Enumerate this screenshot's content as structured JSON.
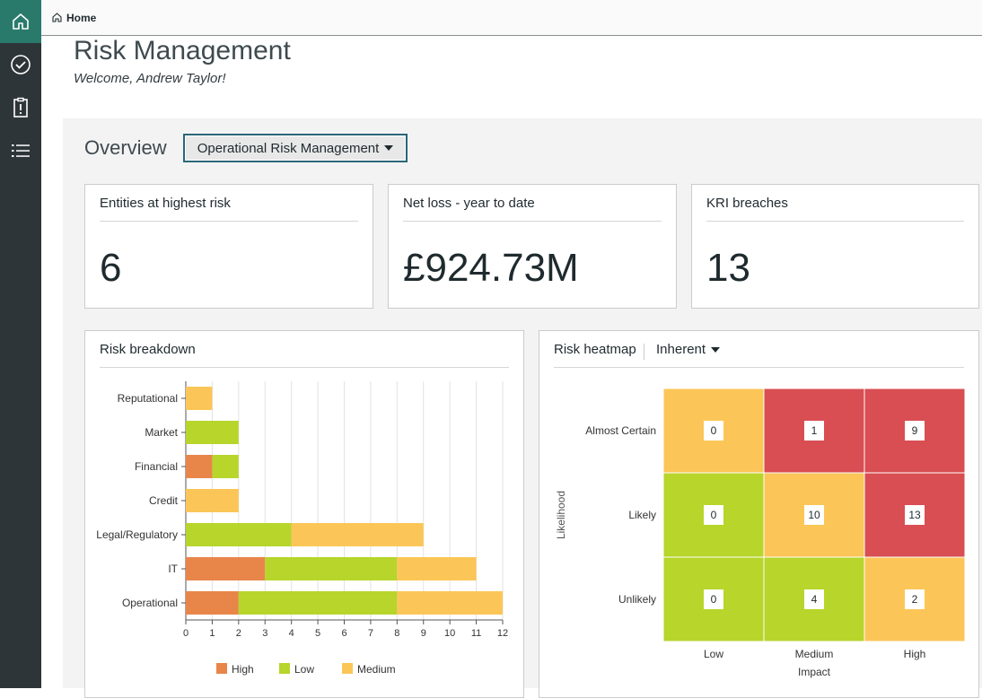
{
  "nav": {
    "items": [
      {
        "icon": "home-icon",
        "active": true
      },
      {
        "icon": "check-circle-icon",
        "active": false
      },
      {
        "icon": "clipboard-alert-icon",
        "active": false
      },
      {
        "icon": "list-icon",
        "active": false
      }
    ]
  },
  "breadcrumb": {
    "home_label": "Home"
  },
  "header": {
    "title": "Risk Management",
    "welcome": "Welcome, Andrew Taylor!"
  },
  "overview": {
    "label": "Overview",
    "selected": "Operational Risk Management"
  },
  "kpis": [
    {
      "title": "Entities at highest risk",
      "value": "6"
    },
    {
      "title": "Net loss - year to date",
      "value": "£924.73M"
    },
    {
      "title": "KRI breaches",
      "value": "13"
    }
  ],
  "breakdown": {
    "title": "Risk breakdown"
  },
  "heatmap": {
    "title": "Risk heatmap",
    "mode": "Inherent",
    "ylabel": "Likelihood",
    "xlabel": "Impact",
    "rows": [
      "Almost Certain",
      "Likely",
      "Unlikely"
    ],
    "cols": [
      "Low",
      "Medium",
      "High"
    ],
    "values": [
      [
        0,
        1,
        9
      ],
      [
        0,
        10,
        13
      ],
      [
        0,
        4,
        2
      ]
    ],
    "colors": [
      [
        "#fbc657",
        "#d84e53",
        "#d84e53"
      ],
      [
        "#b7d52b",
        "#fbc657",
        "#d84e53"
      ],
      [
        "#b7d52b",
        "#b7d52b",
        "#fbc657"
      ]
    ]
  },
  "chart_data": {
    "type": "bar",
    "stacked": true,
    "orientation": "horizontal",
    "categories": [
      "Reputational",
      "Market",
      "Financial",
      "Credit",
      "Legal/Regulatory",
      "IT",
      "Operational"
    ],
    "series": [
      {
        "name": "High",
        "color": "#e8864a",
        "values": [
          0,
          0,
          1,
          0,
          0,
          3,
          2
        ]
      },
      {
        "name": "Low",
        "color": "#b7d52b",
        "values": [
          0,
          2,
          1,
          0,
          4,
          5,
          6
        ]
      },
      {
        "name": "Medium",
        "color": "#fbc657",
        "values": [
          1,
          0,
          0,
          2,
          5,
          3,
          4
        ]
      }
    ],
    "xlim": [
      0,
      12
    ],
    "xticks": [
      "0",
      "1",
      "2",
      "3",
      "4",
      "5",
      "6",
      "7",
      "8",
      "9",
      "10",
      "11",
      "12"
    ],
    "grid": true,
    "legend": "bottom"
  }
}
